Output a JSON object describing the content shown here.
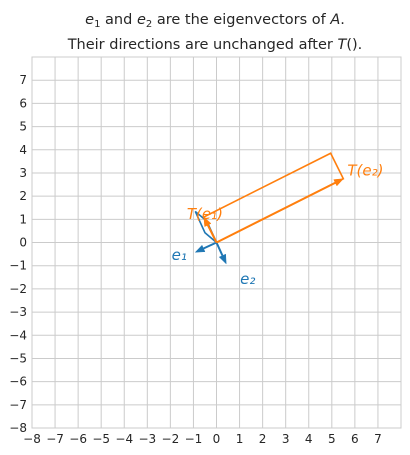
{
  "chart_data": {
    "type": "vector-plot",
    "title_lines": [
      "e₁ and e₂ are the eigenvectors of A.",
      "Their directions are unchanged after T()."
    ],
    "xlim": [
      -8,
      8
    ],
    "ylim": [
      -8,
      8
    ],
    "ticks": [
      -8,
      -7,
      -6,
      -5,
      -4,
      -3,
      -2,
      -1,
      0,
      1,
      2,
      3,
      4,
      5,
      6,
      7
    ],
    "tick_label_format": "minus-sign",
    "grid": true,
    "colors": {
      "blue": "#1f77b4",
      "orange": "#ff7f0e",
      "grid": "#cbcbcb",
      "spine": "#cccccc"
    },
    "vectors": [
      {
        "id": "e2",
        "label": "e₂",
        "from": [
          0,
          0
        ],
        "to": [
          0.42,
          -0.92
        ],
        "color": "#1f77b4"
      },
      {
        "id": "e1",
        "label": "e₁",
        "from": [
          0,
          0
        ],
        "to": [
          -0.92,
          -0.42
        ],
        "color": "#1f77b4"
      },
      {
        "id": "Te1",
        "label": "T(e₁)",
        "from": [
          0,
          0
        ],
        "to": [
          -0.55,
          1.1
        ],
        "color": "#ff7f0e"
      },
      {
        "id": "Te2",
        "label": "T(e₂)",
        "from": [
          0,
          0
        ],
        "to": [
          5.5,
          2.75
        ],
        "color": "#ff7f0e"
      }
    ],
    "parallelograms": [
      {
        "id": "basis",
        "points": [
          [
            0,
            0
          ],
          [
            -0.42,
            0.92
          ],
          [
            -0.92,
            1.34
          ],
          [
            -0.5,
            0.42
          ]
        ],
        "color": "#1f77b4"
      },
      {
        "id": "transformed",
        "points": [
          [
            0,
            0
          ],
          [
            5.5,
            2.75
          ],
          [
            4.95,
            3.85
          ],
          [
            -0.55,
            1.1
          ]
        ],
        "color": "#ff7f0e"
      }
    ]
  }
}
